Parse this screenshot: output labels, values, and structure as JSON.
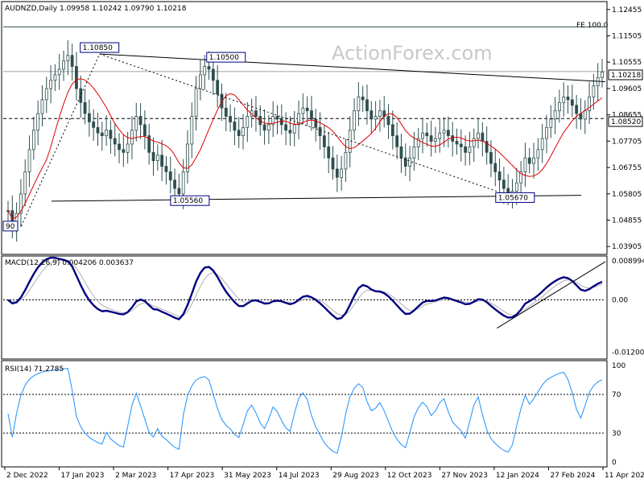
{
  "chart_data": [
    {
      "type": "candlestick",
      "title": "AUDNZD,Daily  1.09958 1.10242 1.09790 1.10218",
      "watermark": "ActionForex.com",
      "yticks": [
        "1.12455",
        "1.11505",
        "1.10555",
        "1.09605",
        "1.08655",
        "1.07705",
        "1.06755",
        "1.05805",
        "1.04855",
        "1.03905"
      ],
      "ytick_values": [
        1.12455,
        1.11505,
        1.10555,
        1.09605,
        1.08655,
        1.07705,
        1.06755,
        1.05805,
        1.04855,
        1.03905
      ],
      "ylim": [
        1.0362,
        1.1274
      ],
      "current_price": "1.10218",
      "current_value": 1.10218,
      "level_price": "1.08520",
      "level_value": 1.0852,
      "fe_label": "FE 100.0",
      "fe_value": 1.1183,
      "labels": [
        {
          "text": "1.10850",
          "x": 0.16,
          "y": 1.1085
        },
        {
          "text": "1.10500",
          "x": 0.37,
          "y": 1.105
        },
        {
          "text": "1.05560",
          "x": 0.31,
          "y": 1.0556
        },
        {
          "text": "1.05670",
          "x": 0.85,
          "y": 1.0567
        },
        {
          "text": "90",
          "x": 0.0,
          "y": 1.0464
        }
      ],
      "lines": [
        {
          "name": "upper-trendline",
          "from": [
            0.16,
            1.1085
          ],
          "to": [
            1.0,
            1.0985
          ],
          "style": "solid"
        },
        {
          "name": "lower-trendline",
          "from": [
            0.08,
            1.0554
          ],
          "to": [
            0.96,
            1.0575
          ],
          "style": "solid"
        },
        {
          "name": "dotted-trendline",
          "from": [
            0.16,
            1.1085
          ],
          "to": [
            0.85,
            1.0567
          ],
          "style": "dotted"
        },
        {
          "name": "left-dotted-trendline",
          "from": [
            0.03,
            1.0464
          ],
          "to": [
            0.16,
            1.1085
          ],
          "style": "dotted"
        }
      ],
      "ma_color": "#e00000",
      "candle_color": "#2f4f4f"
    },
    {
      "type": "line",
      "title": "MACD(12,26,9) 0.004206 0.003637",
      "yticks": [
        "0.008994",
        "0.00",
        "-0.012008"
      ],
      "ytick_values": [
        0.008994,
        0.0,
        -0.012008
      ],
      "ylim": [
        -0.0136,
        0.0101
      ],
      "series": [
        {
          "name": "MACD",
          "color": "#000080"
        },
        {
          "name": "Signal",
          "color": "#b0b0b0"
        }
      ],
      "trendline": {
        "from": [
          0.82,
          -0.0065
        ],
        "to": [
          1.0,
          0.0088
        ]
      }
    },
    {
      "type": "line",
      "title": "RSI(14) 71.2785",
      "yticks": [
        "100",
        "70",
        "30",
        "0"
      ],
      "ytick_values": [
        100,
        70,
        30,
        0
      ],
      "ylim": [
        0,
        100
      ],
      "series": [
        {
          "name": "RSI(14)",
          "color": "#1e90ff"
        }
      ]
    }
  ],
  "x_axis": {
    "labels": [
      "2 Dec 2022",
      "17 Jan 2023",
      "2 Mar 2023",
      "17 Apr 2023",
      "31 May 2023",
      "14 Jul 2023",
      "29 Aug 2023",
      "12 Oct 2023",
      "27 Nov 2023",
      "12 Jan 2024",
      "27 Feb 2024",
      "11 Apr 2024"
    ]
  },
  "price_series": [
    1.052,
    1.046,
    1.051,
    1.058,
    1.066,
    1.074,
    1.081,
    1.087,
    1.092,
    1.096,
    1.099,
    1.101,
    1.103,
    1.106,
    1.108,
    1.104,
    1.096,
    1.091,
    1.087,
    1.084,
    1.082,
    1.08,
    1.079,
    1.081,
    1.078,
    1.076,
    1.074,
    1.073,
    1.076,
    1.081,
    1.086,
    1.083,
    1.079,
    1.073,
    1.07,
    1.072,
    1.068,
    1.066,
    1.063,
    1.06,
    1.058,
    1.066,
    1.076,
    1.086,
    1.096,
    1.101,
    1.104,
    1.103,
    1.099,
    1.094,
    1.089,
    1.086,
    1.084,
    1.081,
    1.079,
    1.082,
    1.086,
    1.088,
    1.086,
    1.083,
    1.081,
    1.083,
    1.086,
    1.085,
    1.083,
    1.081,
    1.08,
    1.083,
    1.087,
    1.089,
    1.088,
    1.085,
    1.082,
    1.079,
    1.075,
    1.071,
    1.067,
    1.064,
    1.067,
    1.073,
    1.081,
    1.088,
    1.093,
    1.092,
    1.088,
    1.085,
    1.086,
    1.088,
    1.086,
    1.083,
    1.079,
    1.075,
    1.071,
    1.068,
    1.071,
    1.075,
    1.078,
    1.08,
    1.079,
    1.077,
    1.078,
    1.08,
    1.081,
    1.079,
    1.077,
    1.076,
    1.075,
    1.073,
    1.075,
    1.078,
    1.08,
    1.077,
    1.073,
    1.069,
    1.066,
    1.063,
    1.06,
    1.058,
    1.059,
    1.062,
    1.066,
    1.071,
    1.069,
    1.071,
    1.074,
    1.078,
    1.082,
    1.085,
    1.088,
    1.091,
    1.093,
    1.092,
    1.09,
    1.087,
    1.085,
    1.088,
    1.093,
    1.097,
    1.1,
    1.102
  ]
}
